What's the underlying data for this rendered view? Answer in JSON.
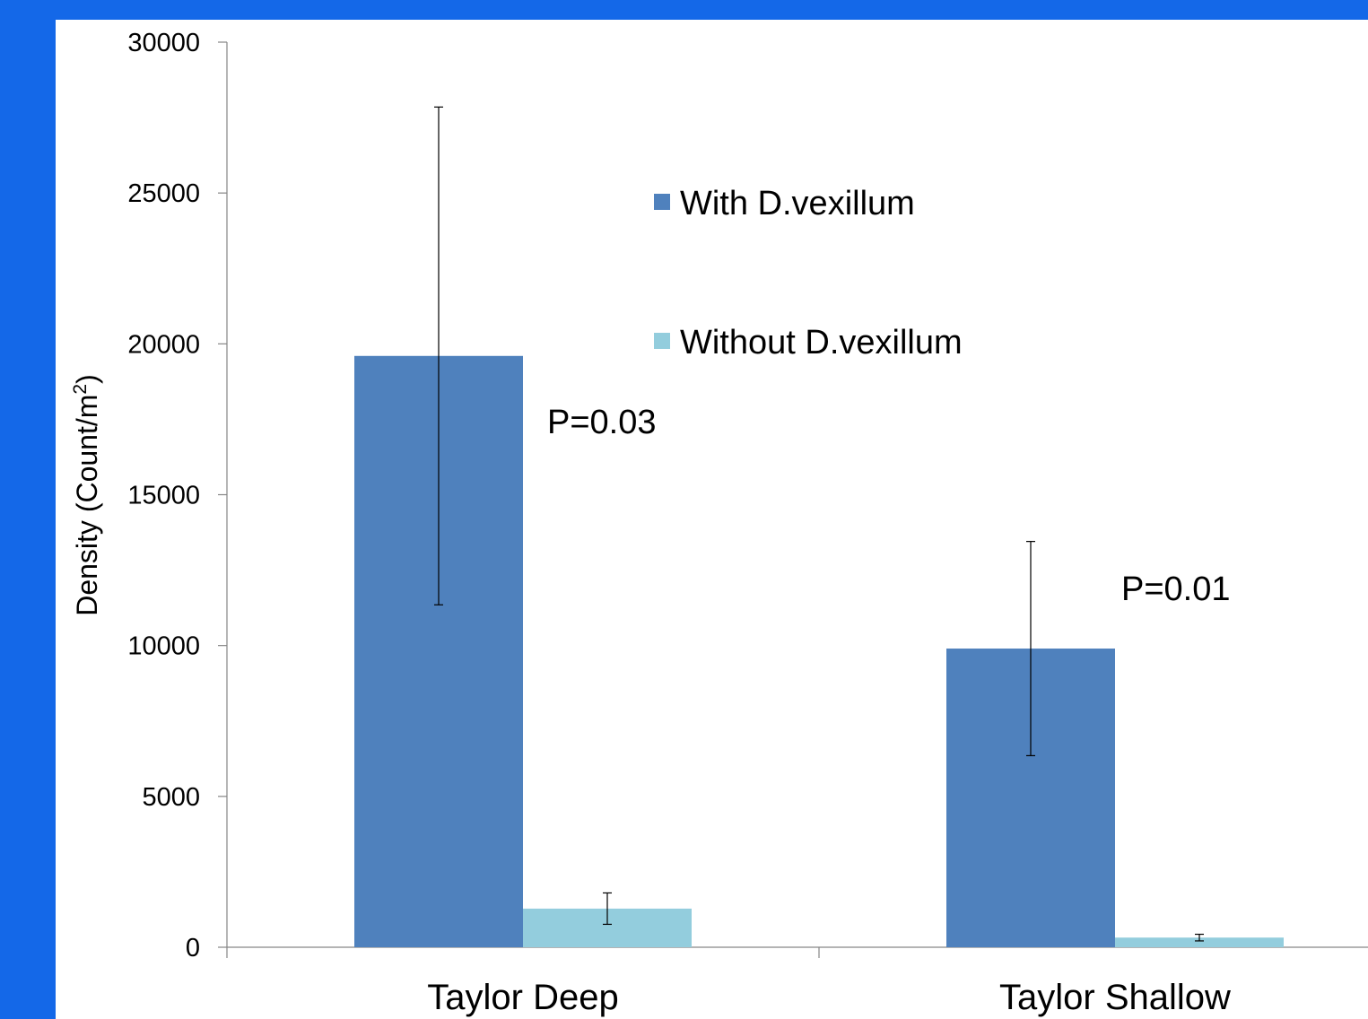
{
  "slide": {
    "title": ""
  },
  "chart_data": {
    "type": "bar",
    "categories": [
      "Taylor Deep",
      "Taylor Shallow"
    ],
    "series": [
      {
        "name": "With D.vexillum",
        "values": [
          19600,
          9900
        ],
        "error": [
          8250,
          3550
        ],
        "color": "#4f81bd"
      },
      {
        "name": "Without D.vexillum",
        "values": [
          1280,
          320
        ],
        "error": [
          520,
          110
        ],
        "color": "#93cddd"
      }
    ],
    "ylabel": "Density (Count/m",
    "ylabel_superscript": "2",
    "ylabel_close": ")",
    "ylim": [
      0,
      30000
    ],
    "yticks": [
      0,
      5000,
      10000,
      15000,
      20000,
      25000,
      30000
    ],
    "annotations": [
      {
        "category": "Taylor Deep",
        "text": "P=0.03"
      },
      {
        "category": "Taylor Shallow",
        "text": "P=0.01"
      }
    ],
    "legend": {
      "position": "top-center"
    },
    "grid": false
  }
}
